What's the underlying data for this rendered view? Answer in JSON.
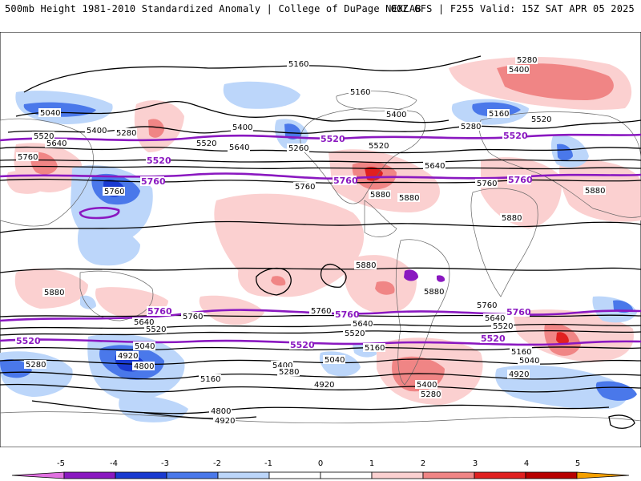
{
  "header": {
    "title": "500mb Height 1981-2010 Standardized Anomaly | College of DuPage NEXLAB",
    "run": "00Z GFS | F255 Valid: 15Z SAT APR 05 2025"
  },
  "colors": {
    "neg5": "#e070e0",
    "neg4": "#8a18c0",
    "neg3": "#1a3ad0",
    "neg2": "#4a78ea",
    "neg1": "#bcd6fa",
    "pos1": "#fbd0d0",
    "pos2": "#f08585",
    "pos3": "#e02020",
    "pos4": "#b80000",
    "pos5": "#f5a000",
    "contour": "#000000",
    "highlight": "#8a18c0"
  },
  "colorbar": {
    "ticks": [
      "-5",
      "-4",
      "-3",
      "-2",
      "-1",
      "0",
      "1",
      "2",
      "3",
      "4",
      "5"
    ]
  },
  "contour_labels": {
    "c5160_nh": "5160",
    "c5280_ne": "5280",
    "c5400_ne": "5400",
    "c5040_nw": "5040",
    "c5520_nw": "5520",
    "c5640_nw": "5640",
    "c5400_nw": "5400",
    "c5280_nw": "5280",
    "c5760_w": "5760",
    "c5760_w2": "5760",
    "c5520_np": "5520",
    "c5640_np": "5640",
    "c5160_na": "5160",
    "c5400_na": "5400",
    "c5280_na": "5280",
    "c5260_na": "5260",
    "c5520_na": "5520",
    "c5640_na": "5640",
    "c5760_na": "5760",
    "c5880_na": "5880",
    "c5880_na2": "5880",
    "c5760_atl": "5760",
    "c5160_eu": "5160",
    "c5520_eu": "5520",
    "c5880_af": "5880",
    "c5880_af2": "5880",
    "c5880_sp": "5880",
    "c5880_sa": "5880",
    "c5880_sa2": "5880",
    "c5760_sp": "5760",
    "c5640_sp": "5640",
    "c5520_sp": "5520",
    "c5040_sp": "5040",
    "c5280_sw": "5280",
    "c4920_sp": "4920",
    "c4800_sp": "4800",
    "c5160_sp": "5160",
    "c5400_sp": "5400",
    "c5280_sp": "5280",
    "c5040_sp2": "5040",
    "c4920_sp2": "4920",
    "c4800_so": "4800",
    "c4920_so": "4920",
    "c5760_sa": "5760",
    "c5640_sa": "5640",
    "c5520_sa": "5520",
    "c5160_sa": "5160",
    "c5400_sa": "5400",
    "c5280_sa": "5280",
    "c5760_sat": "5760",
    "c5640_sat": "5640",
    "c5520_sat": "5520",
    "c5160_si": "5160",
    "c5040_si": "5040",
    "c4920_si": "4920",
    "p5520_np": "5520",
    "p5520_na": "5520",
    "p5520_eu": "5520",
    "p5760_np": "5760",
    "p5760_na": "5760",
    "p5760_eu": "5760",
    "p5760_sp": "5760",
    "p5760_sa": "5760",
    "p5760_si": "5760",
    "p5520_sp": "5520",
    "p5520_sa": "5520",
    "p5520_si": "5520"
  }
}
